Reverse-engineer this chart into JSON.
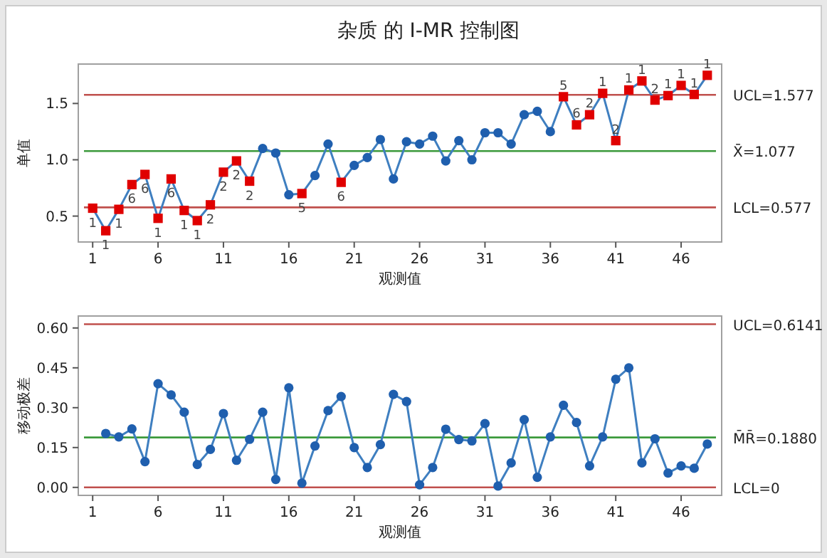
{
  "chart_data": [
    {
      "type": "line",
      "title": "杂质 的 I-MR 控制图",
      "xlabel": "观测值",
      "ylabel": "单值",
      "xlim": [
        -0.1,
        49.1
      ],
      "ylim": [
        0.27,
        1.85
      ],
      "xticks": [
        1,
        6,
        11,
        16,
        21,
        26,
        31,
        36,
        41,
        46
      ],
      "yticks": [
        {
          "value": 0.5,
          "label": "0.5"
        },
        {
          "value": 1.0,
          "label": "1.0"
        },
        {
          "value": 1.5,
          "label": "1.5"
        }
      ],
      "series": [
        {
          "type": "line",
          "marker": "none",
          "color": "#3f7fc0",
          "x": [
            1,
            2,
            3,
            4,
            5,
            6,
            7,
            8,
            9,
            10,
            11,
            12,
            13,
            14,
            15,
            16,
            17,
            18,
            19,
            20,
            21,
            22,
            23,
            24,
            25,
            26,
            27,
            28,
            29,
            30,
            31,
            32,
            33,
            34,
            35,
            36,
            37,
            38,
            39,
            40,
            41,
            42,
            43,
            44,
            45,
            46,
            47,
            48
          ],
          "values": [
            0.57,
            0.37,
            0.56,
            0.78,
            0.87,
            0.48,
            0.83,
            0.55,
            0.46,
            0.6,
            0.89,
            0.99,
            0.81,
            1.1,
            1.06,
            0.69,
            0.7,
            0.86,
            1.14,
            0.8,
            0.95,
            1.02,
            1.18,
            0.83,
            1.16,
            1.14,
            1.21,
            0.99,
            1.17,
            1.0,
            1.24,
            1.24,
            1.14,
            1.4,
            1.43,
            1.25,
            1.56,
            1.31,
            1.4,
            1.59,
            1.17,
            1.62,
            1.7,
            1.53,
            1.57,
            1.66,
            1.58,
            1.75
          ]
        },
        {
          "type": "scatter",
          "marker": "circle",
          "color": "#1f5fae",
          "x": [
            14,
            15,
            16,
            18,
            19,
            21,
            22,
            23,
            24,
            25,
            26,
            27,
            28,
            29,
            30,
            31,
            32,
            33,
            34,
            35,
            36
          ],
          "values": [
            1.1,
            1.06,
            0.69,
            0.86,
            1.14,
            0.95,
            1.02,
            1.18,
            0.83,
            1.16,
            1.14,
            1.21,
            0.99,
            1.17,
            1.0,
            1.24,
            1.24,
            1.14,
            1.4,
            1.43,
            1.25
          ]
        },
        {
          "type": "scatter",
          "marker": "square",
          "color": "#e00000",
          "x": [
            1,
            2,
            3,
            4,
            5,
            6,
            7,
            8,
            9,
            10,
            11,
            12,
            13,
            17,
            20,
            37,
            38,
            39,
            40,
            41,
            42,
            43,
            44,
            45,
            46,
            47,
            48
          ],
          "values": [
            0.57,
            0.37,
            0.56,
            0.78,
            0.87,
            0.48,
            0.83,
            0.55,
            0.46,
            0.6,
            0.89,
            0.99,
            0.81,
            0.7,
            0.8,
            1.56,
            1.31,
            1.4,
            1.59,
            1.17,
            1.62,
            1.7,
            1.53,
            1.57,
            1.66,
            1.58,
            1.75
          ]
        }
      ],
      "ref_lines": [
        {
          "axis": "y",
          "value": 1.577,
          "label": "UCL=1.577",
          "color": "#c0504d"
        },
        {
          "axis": "y",
          "value": 1.077,
          "label": "X̄=1.077",
          "color": "#3c9a3c"
        },
        {
          "axis": "y",
          "value": 0.577,
          "label": "LCL=0.577",
          "color": "#c0504d"
        }
      ],
      "annotations": [
        {
          "text": "1",
          "x": 1,
          "y": 0.57
        },
        {
          "text": "1",
          "x": 2,
          "y": 0.37
        },
        {
          "text": "1",
          "x": 3,
          "y": 0.56
        },
        {
          "text": "6",
          "x": 4,
          "y": 0.78
        },
        {
          "text": "6",
          "x": 5,
          "y": 0.87
        },
        {
          "text": "1",
          "x": 6,
          "y": 0.48
        },
        {
          "text": "6",
          "x": 7,
          "y": 0.83
        },
        {
          "text": "1",
          "x": 8,
          "y": 0.55
        },
        {
          "text": "1",
          "x": 9,
          "y": 0.46
        },
        {
          "text": "2",
          "x": 10,
          "y": 0.6
        },
        {
          "text": "2",
          "x": 11,
          "y": 0.89
        },
        {
          "text": "2",
          "x": 12,
          "y": 0.99
        },
        {
          "text": "2",
          "x": 13,
          "y": 0.81
        },
        {
          "text": "5",
          "x": 17,
          "y": 0.7
        },
        {
          "text": "6",
          "x": 20,
          "y": 0.8
        },
        {
          "text": "5",
          "x": 37,
          "y": 1.56
        },
        {
          "text": "6",
          "x": 38,
          "y": 1.31
        },
        {
          "text": "2",
          "x": 39,
          "y": 1.4
        },
        {
          "text": "1",
          "x": 40,
          "y": 1.59
        },
        {
          "text": "2",
          "x": 41,
          "y": 1.17
        },
        {
          "text": "1",
          "x": 42,
          "y": 1.62
        },
        {
          "text": "1",
          "x": 43,
          "y": 1.7
        },
        {
          "text": "2",
          "x": 44,
          "y": 1.53
        },
        {
          "text": "1",
          "x": 45,
          "y": 1.57
        },
        {
          "text": "1",
          "x": 46,
          "y": 1.66
        },
        {
          "text": "1",
          "x": 47,
          "y": 1.58
        },
        {
          "text": "1",
          "x": 48,
          "y": 1.75
        }
      ]
    },
    {
      "type": "line",
      "xlabel": "观测值",
      "ylabel": "移动极差",
      "xlim": [
        -0.1,
        49.1
      ],
      "ylim": [
        -0.03,
        0.645
      ],
      "xticks": [
        1,
        6,
        11,
        16,
        21,
        26,
        31,
        36,
        41,
        46
      ],
      "yticks": [
        {
          "value": 0,
          "label": "0.00"
        },
        {
          "value": 0.15,
          "label": "0.15"
        },
        {
          "value": 0.3,
          "label": "0.30"
        },
        {
          "value": 0.45,
          "label": "0.45"
        },
        {
          "value": 0.6,
          "label": "0.60"
        }
      ],
      "marker": "circle",
      "series": [
        {
          "type": "line",
          "color": "#3f7fc0",
          "x": [
            2,
            3,
            4,
            5,
            6,
            7,
            8,
            9,
            10,
            11,
            12,
            13,
            14,
            15,
            16,
            17,
            18,
            19,
            20,
            21,
            22,
            23,
            24,
            25,
            26,
            27,
            28,
            29,
            30,
            31,
            32,
            33,
            34,
            35,
            36,
            37,
            38,
            39,
            40,
            41,
            42,
            43,
            44,
            45,
            46,
            47,
            48
          ],
          "values": [
            0.203,
            0.19,
            0.22,
            0.097,
            0.39,
            0.348,
            0.283,
            0.086,
            0.143,
            0.278,
            0.102,
            0.181,
            0.283,
            0.03,
            0.375,
            0.016,
            0.156,
            0.289,
            0.342,
            0.15,
            0.075,
            0.161,
            0.35,
            0.323,
            0.01,
            0.075,
            0.219,
            0.18,
            0.175,
            0.24,
            0.005,
            0.092,
            0.255,
            0.038,
            0.19,
            0.309,
            0.244,
            0.081,
            0.19,
            0.407,
            0.45,
            0.092,
            0.183,
            0.054,
            0.081,
            0.072,
            0.163
          ]
        }
      ],
      "ref_lines": [
        {
          "axis": "y",
          "value": 0.6141,
          "label": "UCL=0.6141",
          "color": "#c0504d"
        },
        {
          "axis": "y",
          "value": 0.188,
          "label": "M̄R̄=0.1880",
          "color": "#3c9a3c"
        },
        {
          "axis": "y",
          "value": 0,
          "label": "LCL=0",
          "color": "#c0504d"
        }
      ]
    }
  ]
}
